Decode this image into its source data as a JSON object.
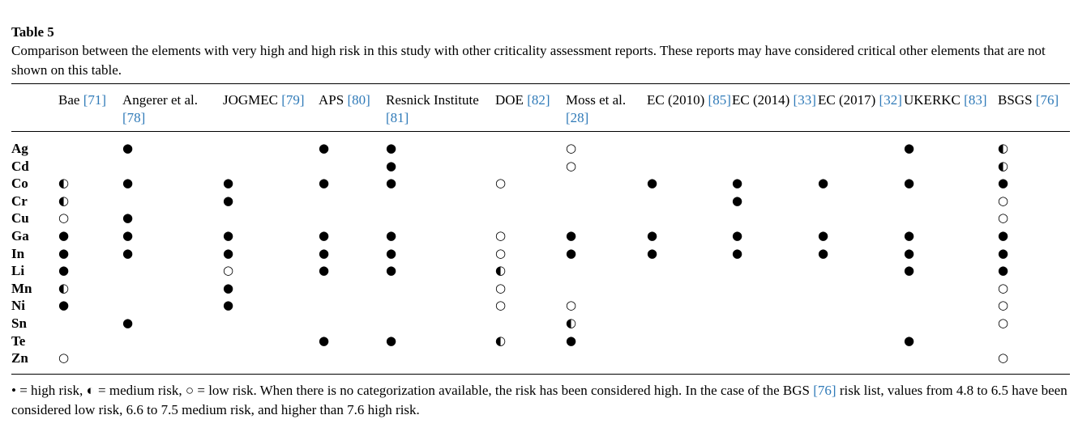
{
  "caption": {
    "label": "Table 5",
    "text": "Comparison between the elements with very high and high risk in this study with other criticality assessment reports. These reports may have considered critical other elements that are not shown on this table."
  },
  "table": {
    "columns": [
      {
        "name": "Bae",
        "ref": "[71]"
      },
      {
        "name": "Angerer et al.",
        "ref": "[78]"
      },
      {
        "name": "JOGMEC",
        "ref": "[79]"
      },
      {
        "name": "APS",
        "ref": "[80]"
      },
      {
        "name": "Resnick Institute",
        "ref": "[81]"
      },
      {
        "name": "DOE",
        "ref": "[82]"
      },
      {
        "name": "Moss et al.",
        "ref": "[28]"
      },
      {
        "name": "EC (2010)",
        "ref": "[85]"
      },
      {
        "name": "EC (2014)",
        "ref": "[33]"
      },
      {
        "name": "EC (2017)",
        "ref": "[32]"
      },
      {
        "name": "UKERKC",
        "ref": "[83]"
      },
      {
        "name": "BSGS",
        "ref": "[76]"
      }
    ],
    "rows": [
      {
        "element": "Ag",
        "cells": [
          null,
          "●",
          null,
          "●",
          "●",
          null,
          "○",
          null,
          null,
          null,
          "●",
          "◐"
        ]
      },
      {
        "element": "Cd",
        "cells": [
          null,
          null,
          null,
          null,
          "●",
          null,
          "○",
          null,
          null,
          null,
          null,
          "◐"
        ]
      },
      {
        "element": "Co",
        "cells": [
          "◐",
          "●",
          "●",
          "●",
          "●",
          "○",
          null,
          "●",
          "●",
          "●",
          "●",
          "●"
        ]
      },
      {
        "element": "Cr",
        "cells": [
          "◐",
          null,
          "●",
          null,
          null,
          null,
          null,
          null,
          "●",
          null,
          null,
          "○"
        ]
      },
      {
        "element": "Cu",
        "cells": [
          "○",
          "●",
          null,
          null,
          null,
          null,
          null,
          null,
          null,
          null,
          null,
          "○"
        ]
      },
      {
        "element": "Ga",
        "cells": [
          "●",
          "●",
          "●",
          "●",
          "●",
          "○",
          "●",
          "●",
          "●",
          "●",
          "●",
          "●"
        ]
      },
      {
        "element": "In",
        "cells": [
          "●",
          "●",
          "●",
          "●",
          "●",
          "○",
          "●",
          "●",
          "●",
          "●",
          "●",
          "●"
        ]
      },
      {
        "element": "Li",
        "cells": [
          "●",
          null,
          "○",
          "●",
          "●",
          "◐",
          null,
          null,
          null,
          null,
          "●",
          "●"
        ]
      },
      {
        "element": "Mn",
        "cells": [
          "◐",
          null,
          "●",
          null,
          null,
          "○",
          null,
          null,
          null,
          null,
          null,
          "○"
        ]
      },
      {
        "element": "Ni",
        "cells": [
          "●",
          null,
          "●",
          null,
          null,
          "○",
          "○",
          null,
          null,
          null,
          null,
          "○"
        ]
      },
      {
        "element": "Sn",
        "cells": [
          null,
          "●",
          null,
          null,
          null,
          null,
          "◐",
          null,
          null,
          null,
          null,
          "○"
        ]
      },
      {
        "element": "Te",
        "cells": [
          null,
          null,
          null,
          "●",
          "●",
          "◐",
          "●",
          null,
          null,
          null,
          "●",
          null
        ]
      },
      {
        "element": "Zn",
        "cells": [
          "○",
          null,
          null,
          null,
          null,
          null,
          null,
          null,
          null,
          null,
          null,
          "○"
        ]
      }
    ]
  },
  "footnote": {
    "before": "• = high risk, ◐ = medium risk, ○ = low risk. When there is no categorization available, the risk has been considered high. In the case of the BGS",
    "ref": "[76]",
    "after": "risk list, values from 4.8 to 6.5 have been considered low risk, 6.6 to 7.5 medium risk, and higher than 7.6 high risk."
  }
}
